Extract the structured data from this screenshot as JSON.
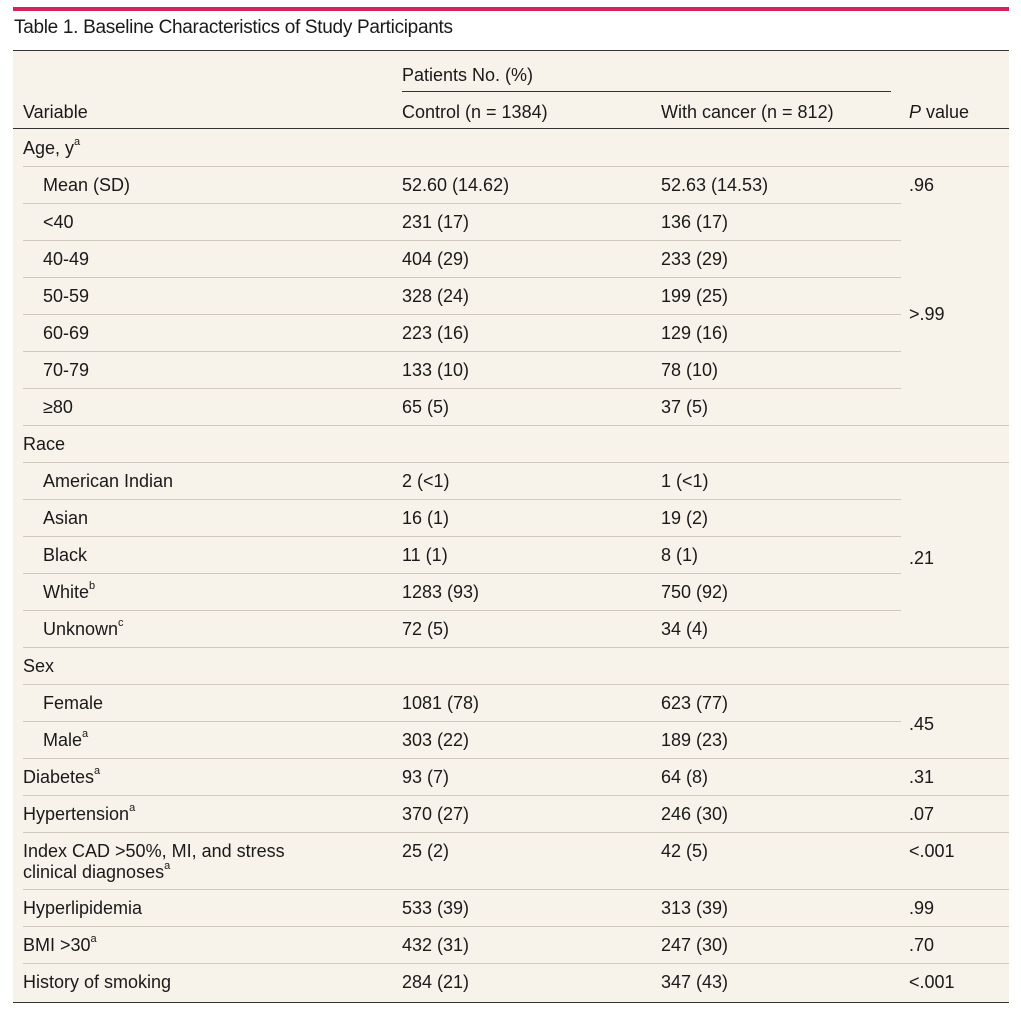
{
  "title": "Table 1. Baseline Characteristics of Study Participants",
  "header": {
    "group": "Patients No. (%)",
    "variable": "Variable",
    "control": "Control (n = 1384)",
    "cancer": "With cancer (n = 812)",
    "p_italic": "P",
    "p_rest": " value"
  },
  "rows": [
    {
      "label": "Age, y",
      "sup": "a",
      "control": "",
      "cancer": "",
      "p": "",
      "indent": false
    },
    {
      "label": "Mean (SD)",
      "sup": "",
      "control": "52.60 (14.62)",
      "cancer": "52.63 (14.53)",
      "p": ".96",
      "indent": true
    },
    {
      "label": "<40",
      "sup": "",
      "control": "231 (17)",
      "cancer": "136 (17)",
      "p": "",
      "indent": true
    },
    {
      "label": "40-49",
      "sup": "",
      "control": "404 (29)",
      "cancer": "233 (29)",
      "p": "",
      "indent": true
    },
    {
      "label": "50-59",
      "sup": "",
      "control": "328 (24)",
      "cancer": "199 (25)",
      "p": "",
      "indent": true
    },
    {
      "label": "60-69",
      "sup": "",
      "control": "223 (16)",
      "cancer": "129 (16)",
      "p": "",
      "indent": true
    },
    {
      "label": "70-79",
      "sup": "",
      "control": "133 (10)",
      "cancer": "78 (10)",
      "p": "",
      "indent": true
    },
    {
      "label": "≥80",
      "sup": "",
      "control": "65 (5)",
      "cancer": "37 (5)",
      "p": "",
      "indent": true
    },
    {
      "label": "Race",
      "sup": "",
      "control": "",
      "cancer": "",
      "p": "",
      "indent": false
    },
    {
      "label": "American Indian",
      "sup": "",
      "control": "2 (<1)",
      "cancer": "1 (<1)",
      "p": "",
      "indent": true
    },
    {
      "label": "Asian",
      "sup": "",
      "control": "16 (1)",
      "cancer": "19 (2)",
      "p": "",
      "indent": true
    },
    {
      "label": "Black",
      "sup": "",
      "control": "11 (1)",
      "cancer": "8 (1)",
      "p": "",
      "indent": true
    },
    {
      "label": "White",
      "sup": "b",
      "control": "1283 (93)",
      "cancer": "750 (92)",
      "p": "",
      "indent": true
    },
    {
      "label": "Unknown",
      "sup": "c",
      "control": "72 (5)",
      "cancer": "34 (4)",
      "p": "",
      "indent": true
    },
    {
      "label": "Sex",
      "sup": "",
      "control": "",
      "cancer": "",
      "p": "",
      "indent": false
    },
    {
      "label": "Female",
      "sup": "",
      "control": "1081 (78)",
      "cancer": "623 (77)",
      "p": "",
      "indent": true
    },
    {
      "label": "Male",
      "sup": "a",
      "control": "303 (22)",
      "cancer": "189 (23)",
      "p": "",
      "indent": true
    },
    {
      "label": "Diabetes",
      "sup": "a",
      "control": "93 (7)",
      "cancer": "64 (8)",
      "p": ".31",
      "indent": false
    },
    {
      "label": "Hypertension",
      "sup": "a",
      "control": "370 (27)",
      "cancer": "246 (30)",
      "p": ".07",
      "indent": false
    },
    {
      "label": "Index CAD >50%, MI, and stress",
      "label2": "clinical diagnoses",
      "sup": "a",
      "control": "25 (2)",
      "cancer": "42 (5)",
      "p": "<.001",
      "indent": false
    },
    {
      "label": "Hyperlipidemia",
      "sup": "",
      "control": "533 (39)",
      "cancer": "313 (39)",
      "p": ".99",
      "indent": false
    },
    {
      "label": "BMI >30",
      "sup": "a",
      "control": "432 (31)",
      "cancer": "247 (30)",
      "p": ".70",
      "indent": false
    },
    {
      "label": "History of smoking",
      "sup": "",
      "control": "284 (21)",
      "cancer": "347 (43)",
      "p": "<.001",
      "indent": false
    }
  ],
  "group_p": [
    {
      "value": ">.99"
    },
    {
      "value": ".21"
    },
    {
      "value": ".45"
    }
  ]
}
